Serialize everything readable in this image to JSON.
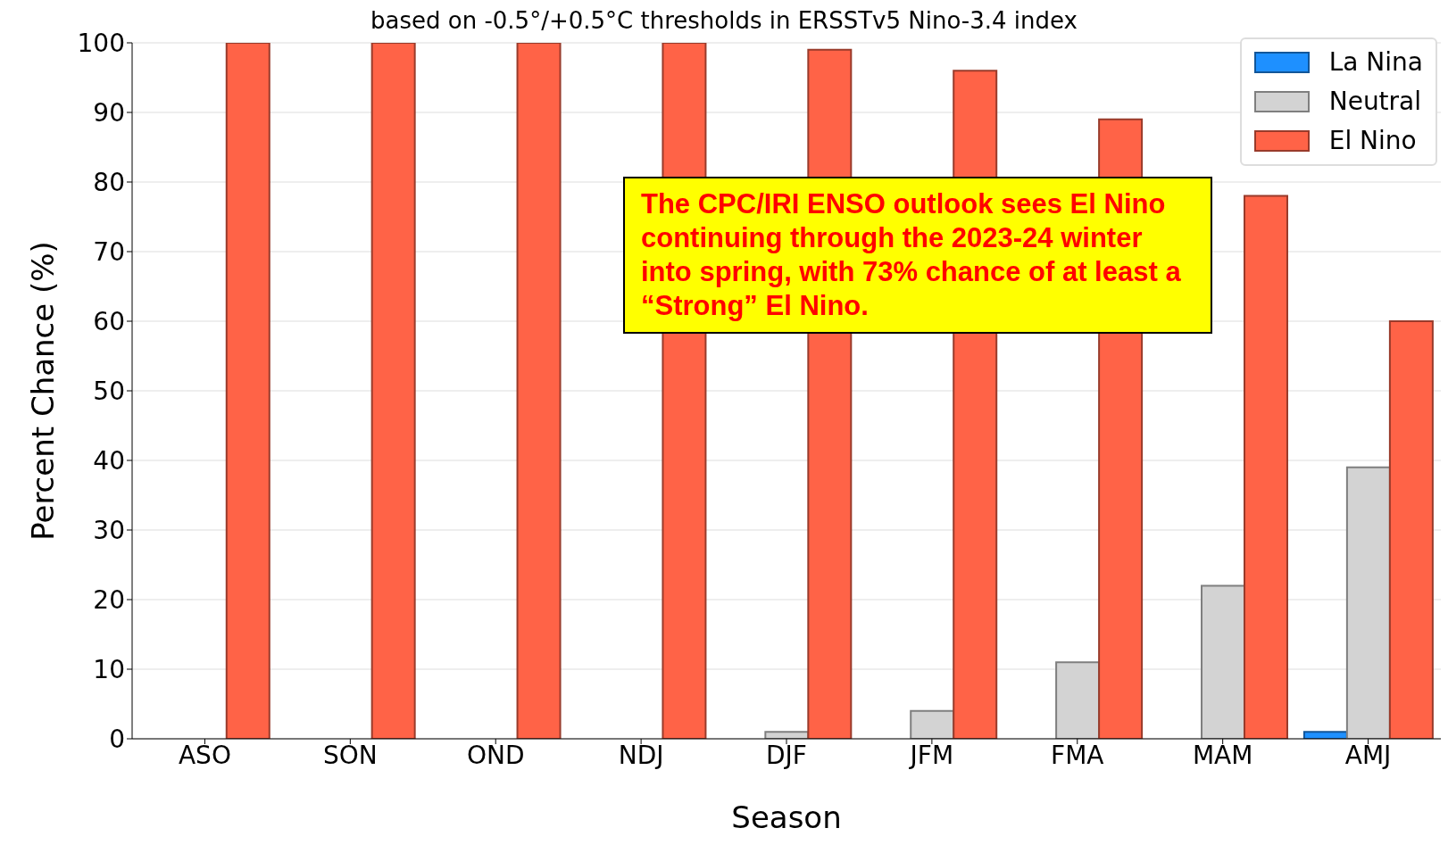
{
  "chart_data": {
    "type": "bar",
    "subtitle": "based on -0.5°/+0.5°C thresholds in ERSSTv5 Nino-3.4 index",
    "xlabel": "Season",
    "ylabel": "Percent Chance (%)",
    "categories": [
      "ASO",
      "SON",
      "OND",
      "NDJ",
      "DJF",
      "JFM",
      "FMA",
      "MAM",
      "AMJ"
    ],
    "series": [
      {
        "name": "La Nina",
        "color": "#1e90ff",
        "values": [
          0,
          0,
          0,
          0,
          0,
          0,
          0,
          0,
          1
        ]
      },
      {
        "name": "Neutral",
        "color": "#d3d3d3",
        "values": [
          0,
          0,
          0,
          0,
          1,
          4,
          11,
          22,
          39
        ]
      },
      {
        "name": "El Nino",
        "color": "#ff6347",
        "values": [
          100,
          100,
          100,
          100,
          99,
          96,
          89,
          78,
          60
        ]
      }
    ],
    "ylim": [
      0,
      100
    ],
    "yticks": [
      0,
      10,
      20,
      30,
      40,
      50,
      60,
      70,
      80,
      90,
      100
    ],
    "grid": "y",
    "legend": "top right",
    "annotations": [
      "The CPC/IRI ENSO outlook sees El Nino continuing through the 2023-24 winter into spring, with 73% chance of at least a “Strong” El Nino."
    ]
  }
}
